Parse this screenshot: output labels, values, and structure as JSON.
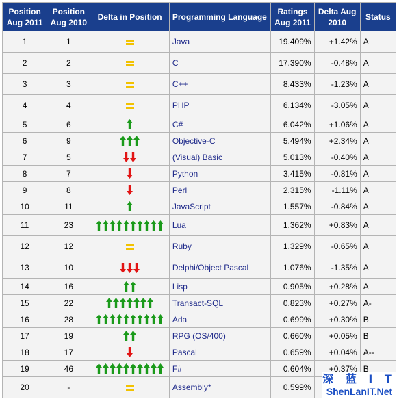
{
  "headers": {
    "pos2011": "Position Aug 2011",
    "pos2010": "Position Aug 2010",
    "delta_pos": "Delta in Position",
    "language": "Programming Language",
    "ratings": "Ratings Aug 2011",
    "delta": "Delta Aug 2010",
    "status": "Status"
  },
  "colors": {
    "header_bg": "#1a3f8d",
    "up": "#1a9a1a",
    "down": "#e21414",
    "same": "#f2c200",
    "link": "#1f2a8a"
  },
  "rows": [
    {
      "pos2011": "1",
      "pos2010": "1",
      "indicator": {
        "dir": "same",
        "count": 1
      },
      "language": "Java",
      "ratings": "19.409%",
      "delta": "+1.42%",
      "status": "A"
    },
    {
      "pos2011": "2",
      "pos2010": "2",
      "indicator": {
        "dir": "same",
        "count": 1
      },
      "language": "C",
      "ratings": "17.390%",
      "delta": "-0.48%",
      "status": "A"
    },
    {
      "pos2011": "3",
      "pos2010": "3",
      "indicator": {
        "dir": "same",
        "count": 1
      },
      "language": "C++",
      "ratings": "8.433%",
      "delta": "-1.23%",
      "status": "A"
    },
    {
      "pos2011": "4",
      "pos2010": "4",
      "indicator": {
        "dir": "same",
        "count": 1
      },
      "language": "PHP",
      "ratings": "6.134%",
      "delta": "-3.05%",
      "status": "A"
    },
    {
      "pos2011": "5",
      "pos2010": "6",
      "indicator": {
        "dir": "up",
        "count": 1
      },
      "language": "C#",
      "ratings": "6.042%",
      "delta": "+1.06%",
      "status": "A"
    },
    {
      "pos2011": "6",
      "pos2010": "9",
      "indicator": {
        "dir": "up",
        "count": 3
      },
      "language": "Objective-C",
      "ratings": "5.494%",
      "delta": "+2.34%",
      "status": "A"
    },
    {
      "pos2011": "7",
      "pos2010": "5",
      "indicator": {
        "dir": "down",
        "count": 2
      },
      "language": "(Visual) Basic",
      "ratings": "5.013%",
      "delta": "-0.40%",
      "status": "A"
    },
    {
      "pos2011": "8",
      "pos2010": "7",
      "indicator": {
        "dir": "down",
        "count": 1
      },
      "language": "Python",
      "ratings": "3.415%",
      "delta": "-0.81%",
      "status": "A"
    },
    {
      "pos2011": "9",
      "pos2010": "8",
      "indicator": {
        "dir": "down",
        "count": 1
      },
      "language": "Perl",
      "ratings": "2.315%",
      "delta": "-1.11%",
      "status": "A"
    },
    {
      "pos2011": "10",
      "pos2010": "11",
      "indicator": {
        "dir": "up",
        "count": 1
      },
      "language": "JavaScript",
      "ratings": "1.557%",
      "delta": "-0.84%",
      "status": "A"
    },
    {
      "pos2011": "11",
      "pos2010": "23",
      "indicator": {
        "dir": "up",
        "count": 10
      },
      "language": "Lua",
      "ratings": "1.362%",
      "delta": "+0.83%",
      "status": "A"
    },
    {
      "pos2011": "12",
      "pos2010": "12",
      "indicator": {
        "dir": "same",
        "count": 1
      },
      "language": "Ruby",
      "ratings": "1.329%",
      "delta": "-0.65%",
      "status": "A"
    },
    {
      "pos2011": "13",
      "pos2010": "10",
      "indicator": {
        "dir": "down",
        "count": 3
      },
      "language": "Delphi/Object Pascal",
      "ratings": "1.076%",
      "delta": "-1.35%",
      "status": "A"
    },
    {
      "pos2011": "14",
      "pos2010": "16",
      "indicator": {
        "dir": "up",
        "count": 2
      },
      "language": "Lisp",
      "ratings": "0.905%",
      "delta": "+0.28%",
      "status": "A"
    },
    {
      "pos2011": "15",
      "pos2010": "22",
      "indicator": {
        "dir": "up",
        "count": 7
      },
      "language": "Transact-SQL",
      "ratings": "0.823%",
      "delta": "+0.27%",
      "status": "A-"
    },
    {
      "pos2011": "16",
      "pos2010": "28",
      "indicator": {
        "dir": "up",
        "count": 10
      },
      "language": "Ada",
      "ratings": "0.699%",
      "delta": "+0.30%",
      "status": "B"
    },
    {
      "pos2011": "17",
      "pos2010": "19",
      "indicator": {
        "dir": "up",
        "count": 2
      },
      "language": "RPG (OS/400)",
      "ratings": "0.660%",
      "delta": "+0.05%",
      "status": "B"
    },
    {
      "pos2011": "18",
      "pos2010": "17",
      "indicator": {
        "dir": "down",
        "count": 1
      },
      "language": "Pascal",
      "ratings": "0.659%",
      "delta": "+0.04%",
      "status": "A--"
    },
    {
      "pos2011": "19",
      "pos2010": "46",
      "indicator": {
        "dir": "up",
        "count": 10
      },
      "language": "F#",
      "ratings": "0.604%",
      "delta": "+0.37%",
      "status": "B"
    },
    {
      "pos2011": "20",
      "pos2010": "-",
      "indicator": {
        "dir": "same",
        "count": 1
      },
      "language": "Assembly*",
      "ratings": "0.599%",
      "delta": "",
      "status": "B"
    }
  ],
  "watermark": {
    "top": "深 蓝 I T",
    "bottom": "ShenLanIT.Net"
  }
}
